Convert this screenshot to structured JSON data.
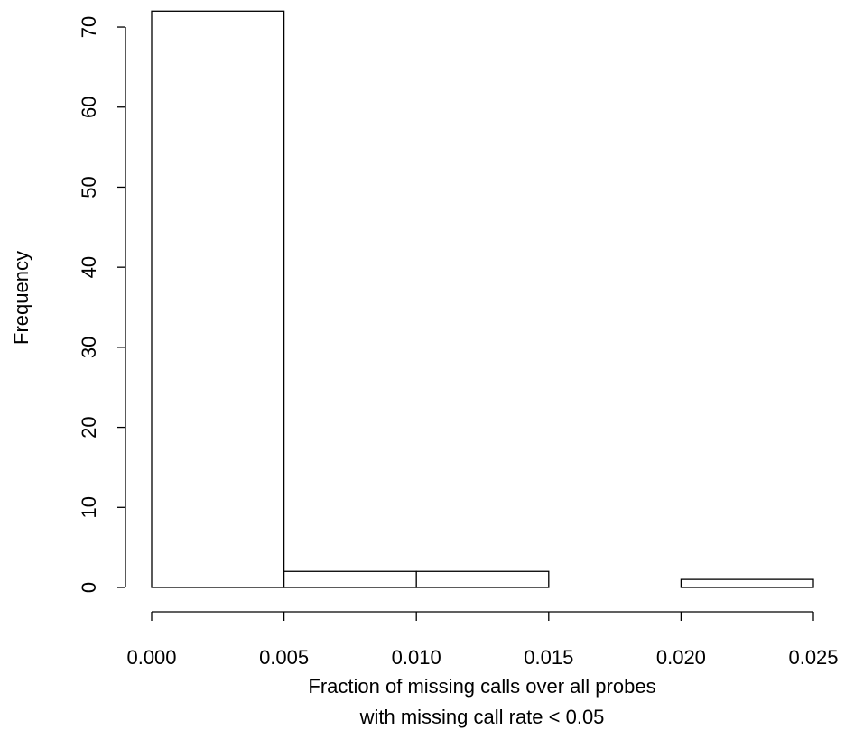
{
  "chart_data": {
    "type": "histogram",
    "xlabel": [
      "Fraction of missing calls over all probes",
      "with missing call rate < 0.05"
    ],
    "ylabel": "Frequency",
    "bins": [
      0,
      0.005,
      0.01,
      0.015,
      0.02,
      0.025
    ],
    "counts": [
      72,
      2,
      2,
      0,
      1
    ],
    "color": "#ffffff",
    "xlim": [
      0,
      0.025
    ],
    "ylim": [
      0,
      72
    ],
    "xticks": [
      {
        "value": 0,
        "label": "0.000"
      },
      {
        "value": 0.005,
        "label": "0.005"
      },
      {
        "value": 0.01,
        "label": "0.010"
      },
      {
        "value": 0.015,
        "label": "0.015"
      },
      {
        "value": 0.02,
        "label": "0.020"
      },
      {
        "value": 0.025,
        "label": "0.025"
      }
    ],
    "yticks": [
      0,
      10,
      20,
      30,
      40,
      50,
      60,
      70
    ]
  }
}
